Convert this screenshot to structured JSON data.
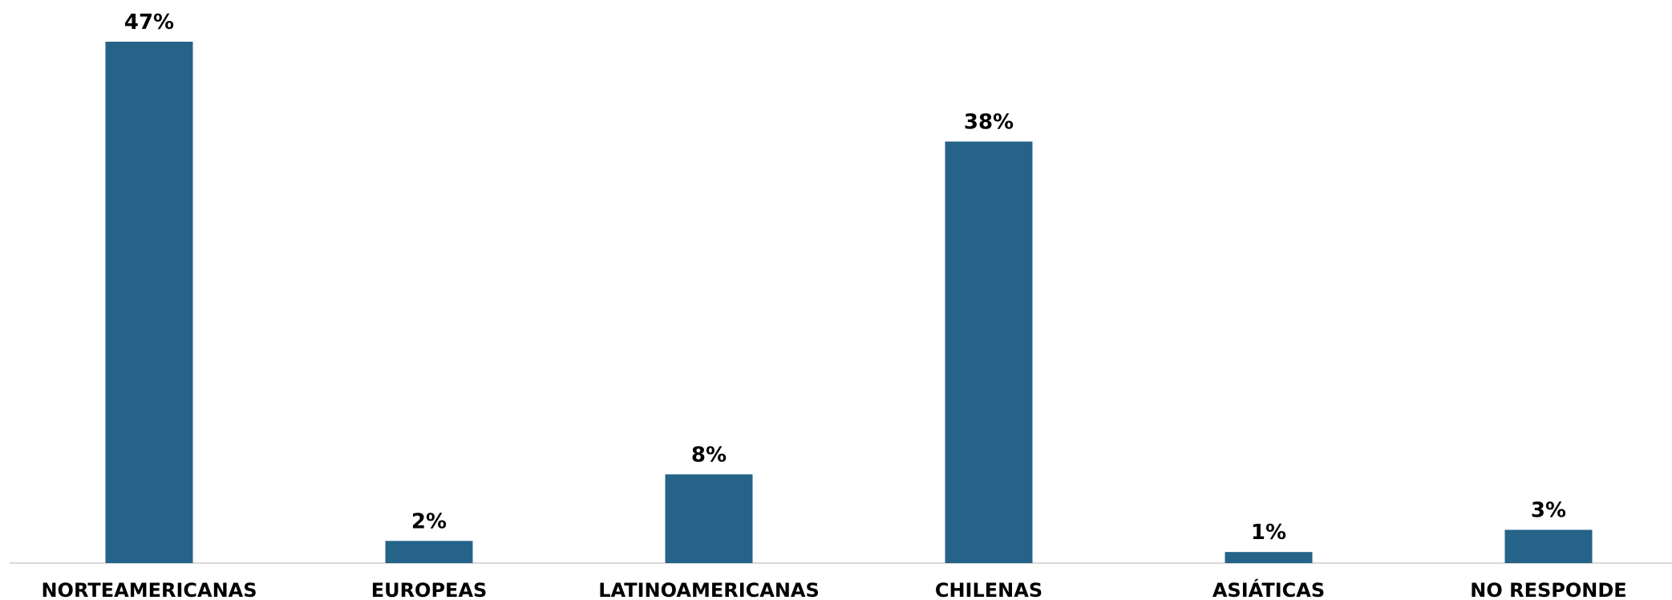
{
  "chart_data": {
    "type": "bar",
    "categories": [
      "NORTEAMERICANAS",
      "EUROPEAS",
      "LATINOAMERICANAS",
      "CHILENAS",
      "ASIÁTICAS",
      "NO RESPONDE"
    ],
    "values": [
      47,
      2,
      8,
      38,
      1,
      3
    ],
    "data_labels": [
      "47%",
      "2%",
      "8%",
      "38%",
      "1%",
      "3%"
    ],
    "unit": "%",
    "title": "",
    "xlabel": "",
    "ylabel": "",
    "ylim": [
      0,
      47
    ],
    "grid": false,
    "legend": "none",
    "colors": {
      "bar": "#256389",
      "axis": "#d9d9d9"
    }
  }
}
